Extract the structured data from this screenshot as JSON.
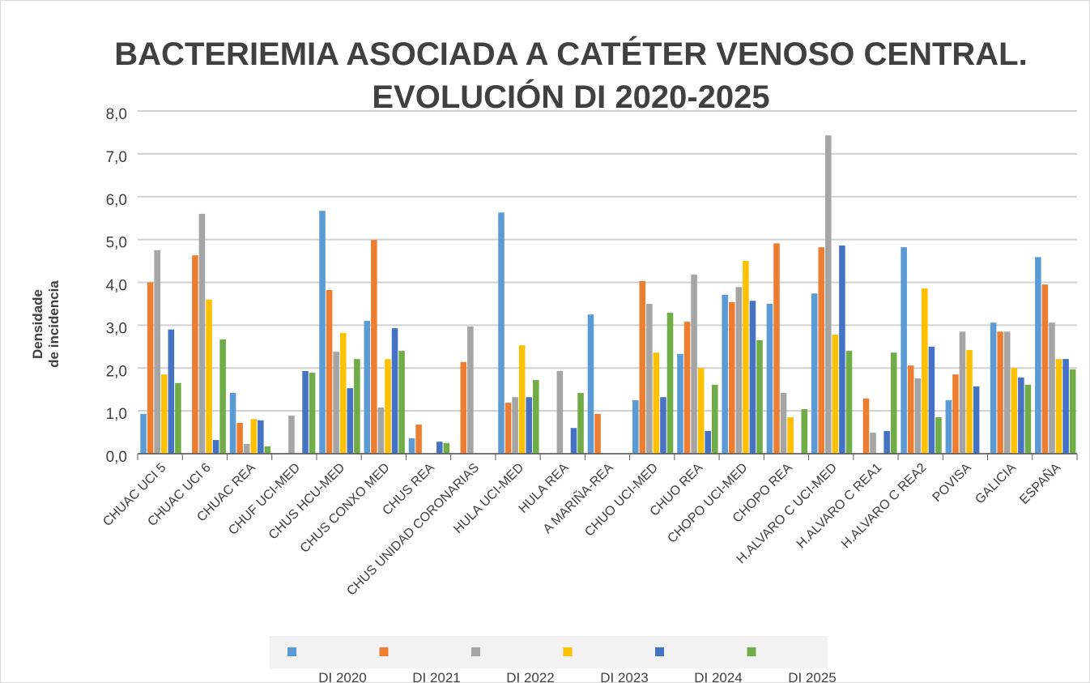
{
  "chart_data": {
    "type": "bar",
    "title": [
      "BACTERIEMIA ASOCIADA A CATÉTER VENOSO CENTRAL.",
      "EVOLUCIÓN DI 2020-2025"
    ],
    "y_label": [
      "Densidade",
      "de incidencia"
    ],
    "categories": [
      "CHUAC UCI 5",
      "CHUAC UCI 6",
      "CHUAC REA",
      "CHUF UCI-MED",
      "CHUS HCU-MED",
      "CHUS CONXO MED",
      "CHUS REA",
      "CHUS UNIDAD CORONARIAS",
      "HULA UCI-MED",
      "HULA REA",
      "A MARIÑA-REA",
      "CHUO UCI-MED",
      "CHUO REA",
      "CHOPO UCI-MED",
      "CHOPO REA",
      "H.ALVARO C UCI-MED",
      "H.ALVARO C REA1",
      "H.ALVARO C REA2",
      "POVISA",
      "GALICIA",
      "ESPAÑA"
    ],
    "series": [
      {
        "name": "DI 2020",
        "color": "#5b9bd5",
        "values": [
          0.93,
          0,
          1.42,
          0,
          5.67,
          3.1,
          0.36,
          0,
          5.63,
          0,
          3.25,
          1.25,
          2.33,
          3.71,
          3.5,
          3.74,
          0,
          4.82,
          1.25,
          3.06,
          4.59
        ]
      },
      {
        "name": "DI 2021",
        "color": "#ed7d31",
        "values": [
          4.0,
          4.63,
          0.72,
          0,
          3.82,
          4.99,
          0.68,
          2.14,
          1.19,
          0,
          0.93,
          4.03,
          3.08,
          3.54,
          4.91,
          4.82,
          1.29,
          2.06,
          1.85,
          2.85,
          3.95
        ]
      },
      {
        "name": "DI 2022",
        "color": "#a5a5a5",
        "values": [
          4.75,
          5.6,
          0.23,
          0.89,
          2.38,
          1.08,
          0,
          2.97,
          1.32,
          1.93,
          0,
          3.5,
          4.18,
          3.89,
          1.42,
          7.43,
          0.49,
          1.76,
          2.85,
          2.85,
          3.06
        ]
      },
      {
        "name": "DI 2023",
        "color": "#ffc000",
        "values": [
          1.85,
          3.6,
          0.81,
          0,
          2.82,
          2.21,
          0,
          0,
          2.53,
          0,
          0,
          2.36,
          2.0,
          4.5,
          0.85,
          2.78,
          0,
          3.86,
          2.42,
          2.0,
          2.21
        ]
      },
      {
        "name": "DI 2024",
        "color": "#4472c4",
        "values": [
          2.9,
          0.32,
          0.78,
          1.93,
          1.53,
          2.93,
          0.28,
          0,
          1.32,
          0.6,
          0,
          1.32,
          0.53,
          3.57,
          0,
          4.86,
          0.53,
          2.5,
          1.57,
          1.78,
          2.21
        ]
      },
      {
        "name": "DI 2025",
        "color": "#70ad47",
        "values": [
          1.65,
          2.67,
          0.17,
          1.89,
          2.21,
          2.4,
          0.25,
          0,
          1.72,
          1.42,
          0,
          3.29,
          1.61,
          2.65,
          1.04,
          2.4,
          2.36,
          0.85,
          0,
          1.61,
          1.97
        ]
      }
    ],
    "ylim": [
      0,
      8
    ],
    "yticks": [
      {
        "value": 0,
        "label": "0,0"
      },
      {
        "value": 1,
        "label": "1,0"
      },
      {
        "value": 2,
        "label": "2,0"
      },
      {
        "value": 3,
        "label": "3,0"
      },
      {
        "value": 4,
        "label": "4,0"
      },
      {
        "value": 5,
        "label": "5,0"
      },
      {
        "value": 6,
        "label": "6,0"
      },
      {
        "value": 7,
        "label": "7,0"
      },
      {
        "value": 8,
        "label": "8,0"
      }
    ],
    "grid": true,
    "legend": "bottom"
  }
}
